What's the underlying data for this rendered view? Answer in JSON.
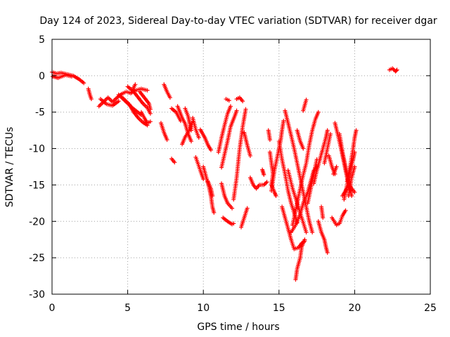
{
  "chart_data": {
    "type": "scatter",
    "title": "Day 124 of 2023, Sidereal Day-to-day VTEC variation (SDTVAR) for receiver dgar",
    "xlabel": "GPS time / hours",
    "ylabel": "SDTVAR / TECUs",
    "xlim": [
      0,
      25
    ],
    "ylim": [
      -30,
      5
    ],
    "xticks": [
      "0",
      "5",
      "10",
      "15",
      "20",
      "25"
    ],
    "yticks": [
      "5",
      "0",
      "-5",
      "-10",
      "-15",
      "-20",
      "-25",
      "-30"
    ],
    "grid": true,
    "marker": "plus",
    "color": "#ff0000",
    "segments": [
      [
        [
          0.0,
          0.5
        ],
        [
          0.3,
          0.3
        ],
        [
          0.6,
          0.4
        ],
        [
          1.0,
          0.2
        ],
        [
          1.4,
          0.0
        ],
        [
          1.8,
          -0.5
        ],
        [
          2.1,
          -1.0
        ]
      ],
      [
        [
          0.05,
          -0.1
        ],
        [
          0.4,
          -0.3
        ],
        [
          0.9,
          0.1
        ],
        [
          1.3,
          -0.1
        ]
      ],
      [
        [
          2.4,
          -1.8
        ],
        [
          2.5,
          -2.6
        ],
        [
          2.6,
          -3.2
        ]
      ],
      [
        [
          3.1,
          -4.2
        ],
        [
          3.4,
          -3.6
        ],
        [
          3.7,
          -3.0
        ],
        [
          4.0,
          -3.6
        ],
        [
          4.3,
          -3.0
        ],
        [
          4.6,
          -2.5
        ],
        [
          4.9,
          -2.2
        ],
        [
          5.2,
          -2.4
        ],
        [
          5.5,
          -2.0
        ],
        [
          5.9,
          -1.8
        ],
        [
          6.3,
          -2.0
        ]
      ],
      [
        [
          3.2,
          -3.2
        ],
        [
          3.6,
          -3.9
        ],
        [
          4.0,
          -4.1
        ],
        [
          4.4,
          -3.5
        ]
      ],
      [
        [
          4.4,
          -2.6
        ],
        [
          4.7,
          -3.2
        ],
        [
          5.0,
          -3.8
        ],
        [
          5.3,
          -4.4
        ],
        [
          5.6,
          -4.9
        ],
        [
          5.9,
          -5.4
        ]
      ],
      [
        [
          4.6,
          -2.9
        ],
        [
          5.1,
          -3.9
        ],
        [
          5.4,
          -5.0
        ],
        [
          5.7,
          -5.8
        ],
        [
          6.0,
          -6.4
        ],
        [
          6.3,
          -6.8
        ]
      ],
      [
        [
          5.0,
          -1.5
        ],
        [
          5.3,
          -2.0
        ],
        [
          5.5,
          -1.2
        ]
      ],
      [
        [
          5.4,
          -2.2
        ],
        [
          5.7,
          -3.0
        ],
        [
          6.0,
          -3.8
        ],
        [
          6.3,
          -4.4
        ],
        [
          6.5,
          -5.2
        ]
      ],
      [
        [
          5.8,
          -2.2
        ],
        [
          6.1,
          -3.0
        ],
        [
          6.4,
          -3.8
        ],
        [
          6.5,
          -4.6
        ]
      ],
      [
        [
          5.9,
          -5.0
        ],
        [
          6.1,
          -5.8
        ],
        [
          6.3,
          -6.5
        ],
        [
          6.5,
          -6.3
        ]
      ],
      [
        [
          7.2,
          -6.5
        ],
        [
          7.4,
          -7.8
        ],
        [
          7.6,
          -8.8
        ]
      ],
      [
        [
          7.4,
          -1.2
        ],
        [
          7.6,
          -2.2
        ],
        [
          7.8,
          -3.0
        ]
      ],
      [
        [
          7.9,
          -4.5
        ],
        [
          8.2,
          -5.0
        ],
        [
          8.5,
          -6.2
        ]
      ],
      [
        [
          8.3,
          -4.2
        ],
        [
          8.6,
          -5.8
        ],
        [
          8.8,
          -6.6
        ],
        [
          9.0,
          -8.0
        ],
        [
          9.2,
          -9.0
        ]
      ],
      [
        [
          8.6,
          -9.4
        ],
        [
          8.8,
          -8.4
        ],
        [
          9.1,
          -7.4
        ],
        [
          9.3,
          -6.3
        ]
      ],
      [
        [
          8.8,
          -4.5
        ],
        [
          9.0,
          -5.6
        ],
        [
          9.1,
          -6.6
        ],
        [
          9.2,
          -7.5
        ]
      ],
      [
        [
          7.9,
          -11.4
        ],
        [
          8.1,
          -11.9
        ]
      ],
      [
        [
          9.3,
          -5.8
        ],
        [
          9.5,
          -7.4
        ],
        [
          9.7,
          -8.5
        ]
      ],
      [
        [
          9.5,
          -11.2
        ],
        [
          9.8,
          -13.0
        ],
        [
          10.0,
          -14.2
        ]
      ],
      [
        [
          9.8,
          -7.4
        ],
        [
          10.1,
          -8.5
        ],
        [
          10.3,
          -9.5
        ],
        [
          10.5,
          -10.2
        ]
      ],
      [
        [
          10.0,
          -12.5
        ],
        [
          10.2,
          -14.0
        ],
        [
          10.4,
          -15.5
        ],
        [
          10.5,
          -16.5
        ],
        [
          10.6,
          -18.0
        ],
        [
          10.7,
          -18.8
        ]
      ],
      [
        [
          10.3,
          -14.5
        ],
        [
          10.5,
          -15.5
        ],
        [
          10.6,
          -16.5
        ]
      ],
      [
        [
          11.0,
          -10.5
        ],
        [
          11.2,
          -8.5
        ],
        [
          11.4,
          -6.8
        ],
        [
          11.6,
          -5.2
        ],
        [
          11.8,
          -4.2
        ]
      ],
      [
        [
          11.2,
          -12.6
        ],
        [
          11.4,
          -10.8
        ],
        [
          11.6,
          -9.0
        ],
        [
          11.8,
          -7.0
        ],
        [
          12.1,
          -5.4
        ],
        [
          12.2,
          -4.8
        ]
      ],
      [
        [
          11.2,
          -14.8
        ],
        [
          11.4,
          -16.5
        ],
        [
          11.6,
          -17.5
        ],
        [
          11.9,
          -18.2
        ]
      ],
      [
        [
          11.3,
          -19.5
        ],
        [
          11.6,
          -20.0
        ],
        [
          11.9,
          -20.4
        ],
        [
          12.0,
          -20.3
        ]
      ],
      [
        [
          11.5,
          -3.2
        ],
        [
          11.7,
          -3.4
        ]
      ],
      [
        [
          12.2,
          -3.2
        ],
        [
          12.4,
          -3.0
        ],
        [
          12.6,
          -3.5
        ]
      ],
      [
        [
          12.0,
          -17.0
        ],
        [
          12.2,
          -14.0
        ],
        [
          12.4,
          -10.0
        ],
        [
          12.6,
          -7.0
        ],
        [
          12.8,
          -4.6
        ]
      ],
      [
        [
          12.5,
          -20.8
        ],
        [
          12.7,
          -19.5
        ],
        [
          12.9,
          -18.2
        ]
      ],
      [
        [
          12.7,
          -7.8
        ],
        [
          12.9,
          -9.5
        ],
        [
          13.1,
          -11.0
        ]
      ],
      [
        [
          13.1,
          -14.0
        ],
        [
          13.3,
          -15.0
        ],
        [
          13.5,
          -15.5
        ],
        [
          13.7,
          -15.0
        ],
        [
          14.0,
          -15.0
        ],
        [
          14.2,
          -14.6
        ]
      ],
      [
        [
          13.9,
          -12.9
        ],
        [
          14.0,
          -13.6
        ]
      ],
      [
        [
          14.3,
          -7.5
        ],
        [
          14.4,
          -8.8
        ]
      ],
      [
        [
          14.4,
          -10.5
        ],
        [
          14.5,
          -12.0
        ],
        [
          14.6,
          -13.5
        ],
        [
          14.5,
          -15.0
        ],
        [
          14.7,
          -16.0
        ],
        [
          14.8,
          -16.5
        ]
      ],
      [
        [
          14.5,
          -15.8
        ],
        [
          14.7,
          -13.0
        ],
        [
          14.9,
          -11.0
        ],
        [
          15.1,
          -9.0
        ],
        [
          15.2,
          -7.5
        ],
        [
          15.3,
          -6.2
        ]
      ],
      [
        [
          15.0,
          -9.0
        ],
        [
          15.2,
          -11.5
        ],
        [
          15.4,
          -13.5
        ],
        [
          15.6,
          -15.8
        ],
        [
          15.8,
          -17.5
        ],
        [
          16.0,
          -18.8
        ],
        [
          16.2,
          -20.2
        ]
      ],
      [
        [
          15.2,
          -18.0
        ],
        [
          15.4,
          -19.5
        ],
        [
          15.6,
          -21.0
        ],
        [
          15.8,
          -22.5
        ],
        [
          16.0,
          -23.8
        ],
        [
          16.3,
          -23.6
        ],
        [
          16.5,
          -23.0
        ],
        [
          16.7,
          -22.7
        ]
      ],
      [
        [
          15.4,
          -4.8
        ],
        [
          15.6,
          -6.5
        ],
        [
          15.8,
          -8.2
        ],
        [
          16.0,
          -10.0
        ],
        [
          16.2,
          -12.0
        ],
        [
          16.4,
          -14.0
        ],
        [
          16.6,
          -16.0
        ],
        [
          16.8,
          -18.0
        ],
        [
          17.0,
          -20.0
        ],
        [
          17.2,
          -21.5
        ]
      ],
      [
        [
          15.6,
          -13.0
        ],
        [
          15.9,
          -15.5
        ],
        [
          16.2,
          -17.5
        ],
        [
          16.5,
          -19.5
        ],
        [
          16.8,
          -21.5
        ]
      ],
      [
        [
          15.9,
          -20.5
        ],
        [
          16.1,
          -18.5
        ],
        [
          16.3,
          -16.5
        ],
        [
          16.5,
          -14.5
        ],
        [
          16.8,
          -12.0
        ],
        [
          17.0,
          -9.5
        ],
        [
          17.2,
          -7.5
        ],
        [
          17.4,
          -6.0
        ],
        [
          17.6,
          -5.0
        ]
      ],
      [
        [
          15.8,
          -21.5
        ],
        [
          16.1,
          -20.5
        ],
        [
          16.4,
          -19.0
        ],
        [
          16.6,
          -17.5
        ],
        [
          16.9,
          -16.0
        ],
        [
          17.1,
          -14.5
        ],
        [
          17.3,
          -13.0
        ],
        [
          17.5,
          -12.5
        ]
      ],
      [
        [
          16.2,
          -7.5
        ],
        [
          16.4,
          -9.0
        ],
        [
          16.6,
          -10.0
        ]
      ],
      [
        [
          16.1,
          -28.0
        ],
        [
          16.2,
          -26.5
        ],
        [
          16.4,
          -25.0
        ],
        [
          16.5,
          -23.5
        ],
        [
          16.7,
          -22.5
        ]
      ],
      [
        [
          16.6,
          -4.8
        ],
        [
          16.8,
          -3.3
        ]
      ],
      [
        [
          16.9,
          -17.5
        ],
        [
          17.1,
          -15.5
        ],
        [
          17.3,
          -13.5
        ],
        [
          17.5,
          -11.5
        ]
      ],
      [
        [
          17.3,
          -14.8
        ],
        [
          17.5,
          -13.0
        ],
        [
          17.7,
          -11.5
        ],
        [
          17.9,
          -10.0
        ],
        [
          18.1,
          -8.5
        ],
        [
          18.2,
          -7.5
        ]
      ],
      [
        [
          17.6,
          -20.0
        ],
        [
          17.8,
          -21.5
        ],
        [
          18.0,
          -22.5
        ],
        [
          18.1,
          -23.5
        ],
        [
          18.2,
          -24.3
        ]
      ],
      [
        [
          17.8,
          -18.0
        ],
        [
          17.9,
          -19.5
        ]
      ],
      [
        [
          18.0,
          -12.0
        ],
        [
          18.2,
          -10.0
        ],
        [
          18.4,
          -8.0
        ]
      ],
      [
        [
          18.3,
          -11.0
        ],
        [
          18.5,
          -12.5
        ],
        [
          18.7,
          -13.5
        ]
      ],
      [
        [
          18.5,
          -19.5
        ],
        [
          18.8,
          -20.5
        ],
        [
          19.0,
          -20.3
        ],
        [
          19.2,
          -19.2
        ],
        [
          19.4,
          -18.5
        ]
      ],
      [
        [
          18.7,
          -6.5
        ],
        [
          18.9,
          -8.2
        ],
        [
          19.1,
          -10.0
        ],
        [
          19.3,
          -12.0
        ],
        [
          19.5,
          -14.0
        ],
        [
          19.7,
          -15.5
        ],
        [
          19.8,
          -16.5
        ]
      ],
      [
        [
          18.6,
          -13.5
        ],
        [
          18.8,
          -12.5
        ]
      ],
      [
        [
          19.0,
          -8.0
        ],
        [
          19.2,
          -10.5
        ],
        [
          19.4,
          -12.5
        ],
        [
          19.6,
          -14.5
        ],
        [
          19.8,
          -15.5
        ],
        [
          20.0,
          -16.0
        ]
      ],
      [
        [
          19.3,
          -17.0
        ],
        [
          19.5,
          -15.0
        ],
        [
          19.7,
          -13.0
        ],
        [
          19.9,
          -11.5
        ],
        [
          20.0,
          -10.5
        ]
      ],
      [
        [
          19.5,
          -14.5
        ],
        [
          19.7,
          -12.5
        ],
        [
          19.9,
          -10.0
        ],
        [
          20.0,
          -8.5
        ],
        [
          20.1,
          -7.5
        ]
      ],
      [
        [
          19.6,
          -16.5
        ],
        [
          19.8,
          -14.0
        ],
        [
          20.0,
          -12.5
        ]
      ],
      [
        [
          19.2,
          -16.5
        ],
        [
          19.4,
          -15.8
        ],
        [
          19.6,
          -15.0
        ]
      ],
      [
        [
          22.3,
          0.8
        ],
        [
          22.5,
          1.0
        ],
        [
          22.7,
          0.6
        ],
        [
          22.8,
          0.8
        ]
      ]
    ]
  }
}
